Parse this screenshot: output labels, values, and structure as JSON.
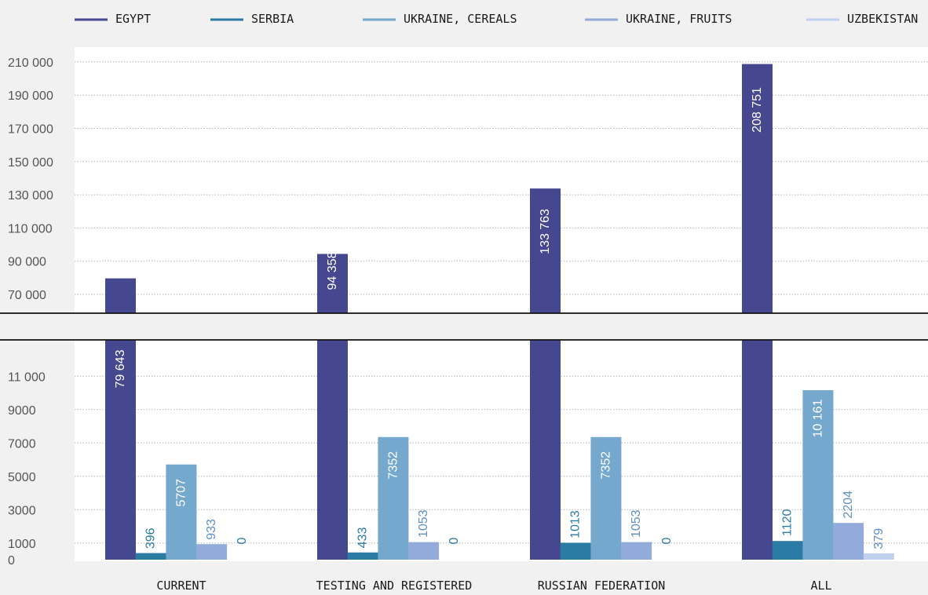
{
  "chart_data": {
    "type": "bar",
    "broken_axis": true,
    "categories": [
      "CURRENT",
      "TESTING AND REGISTERED",
      "RUSSIAN FEDERATION",
      "ALL"
    ],
    "series": [
      {
        "name": "EGYPT",
        "color": "#46488f",
        "values": [
          79643,
          94358,
          133763,
          208751
        ],
        "labels": [
          "79 643",
          "94 358",
          "133 763",
          "208 751"
        ]
      },
      {
        "name": "SERBIA",
        "color": "#2b7ca5",
        "values": [
          396,
          433,
          1013,
          1120
        ],
        "labels": [
          "396",
          "433",
          "1013",
          "1120"
        ]
      },
      {
        "name": "UKRAINE, CEREALS",
        "color": "#74a8cc",
        "values": [
          5707,
          7352,
          7352,
          10161
        ],
        "labels": [
          "5707",
          "7352",
          "7352",
          "10 161"
        ]
      },
      {
        "name": "UKRAINE, FRUITS",
        "color": "#92abdb",
        "values": [
          933,
          1053,
          1053,
          2204
        ],
        "labels": [
          "933",
          "1053",
          "1053",
          "2204"
        ]
      },
      {
        "name": "UZBEKISTAN",
        "color": "#bfd1f0",
        "values": [
          0,
          0,
          0,
          379
        ],
        "labels": [
          "0",
          "0",
          "0",
          "379"
        ]
      }
    ],
    "y_ticks_upper": [
      "70 000",
      "90 000",
      "110 000",
      "130 000",
      "150 000",
      "170 000",
      "190 000",
      "210 000"
    ],
    "y_ticks_lower": [
      "0",
      "1000",
      "3000",
      "5000",
      "7000",
      "9000",
      "11 000"
    ],
    "ylim_upper": [
      60000,
      212000
    ],
    "ylim_lower": [
      0,
      12000
    ],
    "grid": true,
    "legend_position": "top"
  }
}
